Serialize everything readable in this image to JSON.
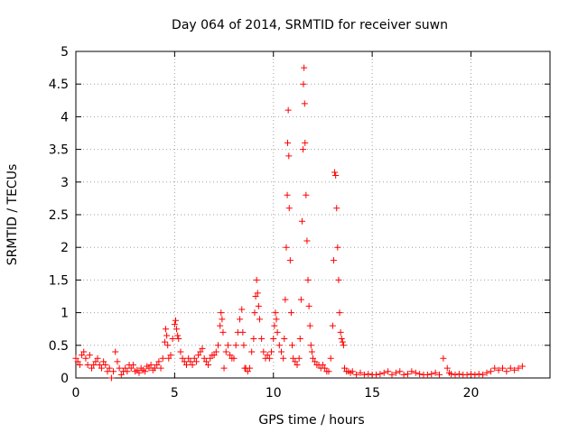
{
  "chart_data": {
    "type": "scatter",
    "title": "Day 064 of 2014, SRMTID for receiver suwn",
    "xlabel": "GPS time / hours",
    "ylabel": "SRMTID / TECUs",
    "xlim": [
      0,
      24
    ],
    "ylim": [
      0,
      5
    ],
    "xticks": [
      0,
      5,
      10,
      15,
      20
    ],
    "xtick_labels": [
      "0",
      "5",
      "10",
      "15",
      "20"
    ],
    "yticks": [
      0,
      0.5,
      1,
      1.5,
      2,
      2.5,
      3,
      3.5,
      4,
      4.5,
      5
    ],
    "ytick_labels": [
      "0",
      "0.5",
      "1",
      "1.5",
      "2",
      "2.5",
      "3",
      "3.5",
      "4",
      "4.5",
      "5"
    ],
    "grid": true,
    "marker": "plus",
    "series": [
      {
        "name": "suwn",
        "color": "#ff0000",
        "x": [
          0.0,
          0.1,
          0.2,
          0.3,
          0.4,
          0.5,
          0.6,
          0.7,
          0.8,
          0.9,
          1.0,
          1.1,
          1.2,
          1.3,
          1.4,
          1.5,
          1.6,
          1.7,
          1.8,
          1.9,
          2.0,
          2.1,
          2.2,
          2.3,
          2.4,
          2.5,
          2.6,
          2.7,
          2.8,
          2.9,
          3.0,
          3.1,
          3.2,
          3.3,
          3.4,
          3.5,
          3.6,
          3.7,
          3.8,
          3.9,
          4.0,
          4.1,
          4.2,
          4.3,
          4.4,
          4.5,
          4.55,
          4.6,
          4.65,
          4.7,
          4.8,
          4.9,
          5.0,
          5.05,
          5.1,
          5.15,
          5.2,
          5.3,
          5.4,
          5.5,
          5.6,
          5.7,
          5.8,
          5.9,
          6.0,
          6.1,
          6.2,
          6.3,
          6.4,
          6.5,
          6.6,
          6.7,
          6.8,
          6.9,
          7.0,
          7.1,
          7.2,
          7.3,
          7.35,
          7.4,
          7.45,
          7.5,
          7.6,
          7.7,
          7.8,
          7.9,
          8.0,
          8.1,
          8.2,
          8.3,
          8.4,
          8.45,
          8.5,
          8.55,
          8.6,
          8.7,
          8.8,
          8.9,
          9.0,
          9.05,
          9.1,
          9.15,
          9.2,
          9.25,
          9.3,
          9.4,
          9.5,
          9.6,
          9.7,
          9.8,
          9.9,
          10.0,
          10.05,
          10.1,
          10.15,
          10.2,
          10.3,
          10.4,
          10.5,
          10.55,
          10.6,
          10.65,
          10.7,
          10.72,
          10.75,
          10.78,
          10.8,
          10.85,
          10.9,
          10.95,
          11.0,
          11.1,
          11.2,
          11.3,
          11.35,
          11.4,
          11.45,
          11.5,
          11.52,
          11.55,
          11.58,
          11.6,
          11.65,
          11.7,
          11.75,
          11.8,
          11.85,
          11.9,
          11.95,
          12.0,
          12.1,
          12.2,
          12.3,
          12.4,
          12.5,
          12.6,
          12.7,
          12.8,
          12.9,
          13.0,
          13.05,
          13.1,
          13.15,
          13.2,
          13.25,
          13.3,
          13.35,
          13.4,
          13.45,
          13.5,
          13.55,
          13.6,
          13.7,
          13.8,
          13.9,
          14.0,
          14.2,
          14.4,
          14.6,
          14.8,
          15.0,
          15.2,
          15.4,
          15.6,
          15.8,
          16.0,
          16.2,
          16.4,
          16.6,
          16.8,
          17.0,
          17.2,
          17.4,
          17.6,
          17.8,
          18.0,
          18.2,
          18.4,
          18.6,
          18.8,
          18.9,
          19.0,
          19.2,
          19.4,
          19.6,
          19.8,
          20.0,
          20.2,
          20.4,
          20.6,
          20.8,
          21.0,
          21.2,
          21.4,
          21.6,
          21.8,
          22.0,
          22.2,
          22.4,
          22.6
        ],
        "y": [
          0.3,
          0.25,
          0.2,
          0.35,
          0.4,
          0.3,
          0.2,
          0.35,
          0.15,
          0.2,
          0.25,
          0.3,
          0.2,
          0.15,
          0.25,
          0.2,
          0.1,
          0.15,
          0.0,
          0.1,
          0.4,
          0.25,
          0.15,
          0.05,
          0.1,
          0.15,
          0.1,
          0.2,
          0.15,
          0.2,
          0.1,
          0.12,
          0.08,
          0.15,
          0.12,
          0.1,
          0.18,
          0.15,
          0.2,
          0.12,
          0.15,
          0.2,
          0.25,
          0.15,
          0.3,
          0.55,
          0.75,
          0.65,
          0.5,
          0.3,
          0.35,
          0.6,
          0.82,
          0.88,
          0.75,
          0.65,
          0.6,
          0.4,
          0.3,
          0.25,
          0.2,
          0.3,
          0.25,
          0.2,
          0.3,
          0.25,
          0.35,
          0.4,
          0.45,
          0.3,
          0.25,
          0.2,
          0.3,
          0.35,
          0.35,
          0.4,
          0.5,
          0.8,
          1.0,
          0.9,
          0.7,
          0.15,
          0.4,
          0.5,
          0.35,
          0.3,
          0.3,
          0.5,
          0.7,
          0.9,
          1.05,
          0.7,
          0.5,
          0.15,
          0.15,
          0.1,
          0.15,
          0.4,
          0.6,
          1.0,
          1.25,
          1.5,
          1.3,
          1.1,
          0.9,
          0.6,
          0.4,
          0.3,
          0.35,
          0.3,
          0.4,
          0.6,
          0.8,
          1.0,
          0.9,
          0.7,
          0.5,
          0.4,
          0.3,
          0.6,
          1.2,
          2.0,
          2.8,
          3.6,
          4.1,
          3.4,
          2.6,
          1.8,
          1.0,
          0.5,
          0.3,
          0.25,
          0.2,
          0.3,
          0.6,
          1.2,
          2.4,
          3.5,
          4.5,
          4.75,
          4.2,
          3.6,
          2.8,
          2.1,
          1.5,
          1.1,
          0.8,
          0.5,
          0.4,
          0.3,
          0.25,
          0.2,
          0.2,
          0.15,
          0.2,
          0.15,
          0.1,
          0.1,
          0.3,
          0.8,
          1.8,
          3.15,
          3.1,
          2.6,
          2.0,
          1.5,
          1.0,
          0.7,
          0.6,
          0.55,
          0.5,
          0.15,
          0.1,
          0.1,
          0.08,
          0.1,
          0.05,
          0.08,
          0.05,
          0.06,
          0.05,
          0.05,
          0.06,
          0.08,
          0.1,
          0.05,
          0.08,
          0.1,
          0.05,
          0.06,
          0.1,
          0.08,
          0.06,
          0.05,
          0.05,
          0.06,
          0.08,
          0.05,
          0.3,
          0.15,
          0.08,
          0.06,
          0.05,
          0.06,
          0.05,
          0.05,
          0.06,
          0.05,
          0.06,
          0.05,
          0.08,
          0.1,
          0.15,
          0.12,
          0.15,
          0.1,
          0.15,
          0.12,
          0.15,
          0.18
        ]
      }
    ]
  }
}
